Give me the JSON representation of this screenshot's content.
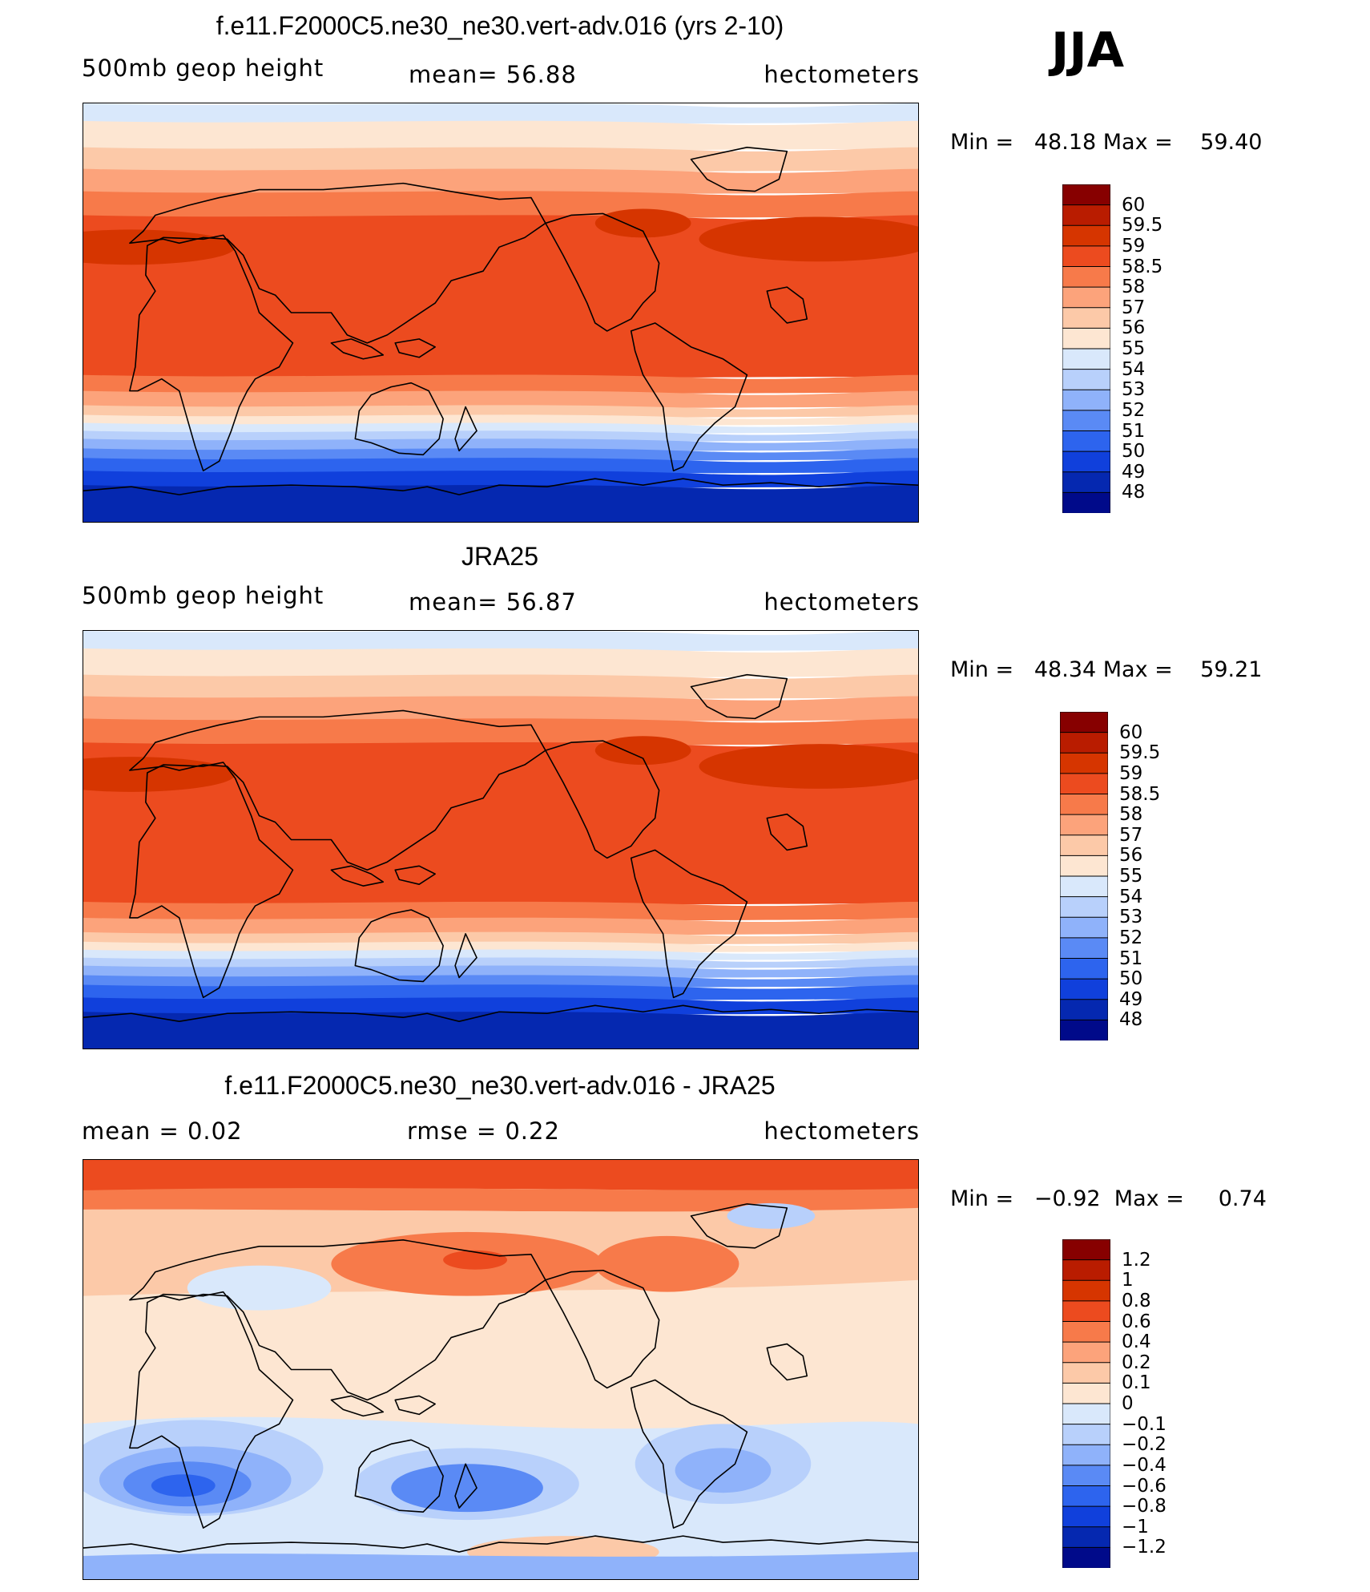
{
  "season": "JJA",
  "panels": [
    {
      "title": "f.e11.F2000C5.ne30_ne30.vert-adv.016 (yrs 2-10)",
      "left_label": "500mb  geop  height",
      "center_label": "mean=   56.88",
      "right_label": "hectometers",
      "min_label": "Min  =",
      "min_value": "48.18",
      "max_label": "Max  =",
      "max_value": "59.40",
      "kind": "field",
      "colorbar": {
        "labels": [
          "60",
          "59.5",
          "59",
          "58.5",
          "58",
          "57",
          "56",
          "55",
          "54",
          "53",
          "52",
          "51",
          "50",
          "49",
          "48"
        ],
        "colors": [
          "#870000",
          "#b91c00",
          "#d63500",
          "#ec4b1f",
          "#f77a4a",
          "#fca37b",
          "#fcc9a8",
          "#fde6d2",
          "#d9e8fb",
          "#b8d0fb",
          "#8fb2fa",
          "#5a8af5",
          "#2d64ee",
          "#1040dc",
          "#0528b0",
          "#000a8a"
        ]
      }
    },
    {
      "title": "JRA25",
      "left_label": "500mb  geop  height",
      "center_label": "mean=   56.87",
      "right_label": "hectometers",
      "min_label": "Min  =",
      "min_value": "48.34",
      "max_label": "Max  =",
      "max_value": "59.21",
      "kind": "field",
      "colorbar": {
        "labels": [
          "60",
          "59.5",
          "59",
          "58.5",
          "58",
          "57",
          "56",
          "55",
          "54",
          "53",
          "52",
          "51",
          "50",
          "49",
          "48"
        ],
        "colors": [
          "#870000",
          "#b91c00",
          "#d63500",
          "#ec4b1f",
          "#f77a4a",
          "#fca37b",
          "#fcc9a8",
          "#fde6d2",
          "#d9e8fb",
          "#b8d0fb",
          "#8fb2fa",
          "#5a8af5",
          "#2d64ee",
          "#1040dc",
          "#0528b0",
          "#000a8a"
        ]
      }
    },
    {
      "title": "f.e11.F2000C5.ne30_ne30.vert-adv.016 - JRA25",
      "left_label": "mean  =      0.02",
      "center_label": "rmse  =      0.22",
      "right_label": "hectometers",
      "min_label": "Min  =",
      "min_value": "−0.92",
      "max_label": "Max  =",
      "max_value": "0.74",
      "kind": "diff",
      "colorbar": {
        "labels": [
          "1.2",
          "1",
          "0.8",
          "0.6",
          "0.4",
          "0.2",
          "0.1",
          "0",
          "−0.1",
          "−0.2",
          "−0.4",
          "−0.6",
          "−0.8",
          "−1",
          "−1.2"
        ],
        "colors": [
          "#870000",
          "#b91c00",
          "#d63500",
          "#ec4b1f",
          "#f77a4a",
          "#fca37b",
          "#fcc9a8",
          "#fde6d2",
          "#d9e8fb",
          "#b8d0fb",
          "#8fb2fa",
          "#5a8af5",
          "#2d64ee",
          "#1040dc",
          "#0528b0",
          "#000a8a"
        ]
      }
    }
  ]
}
